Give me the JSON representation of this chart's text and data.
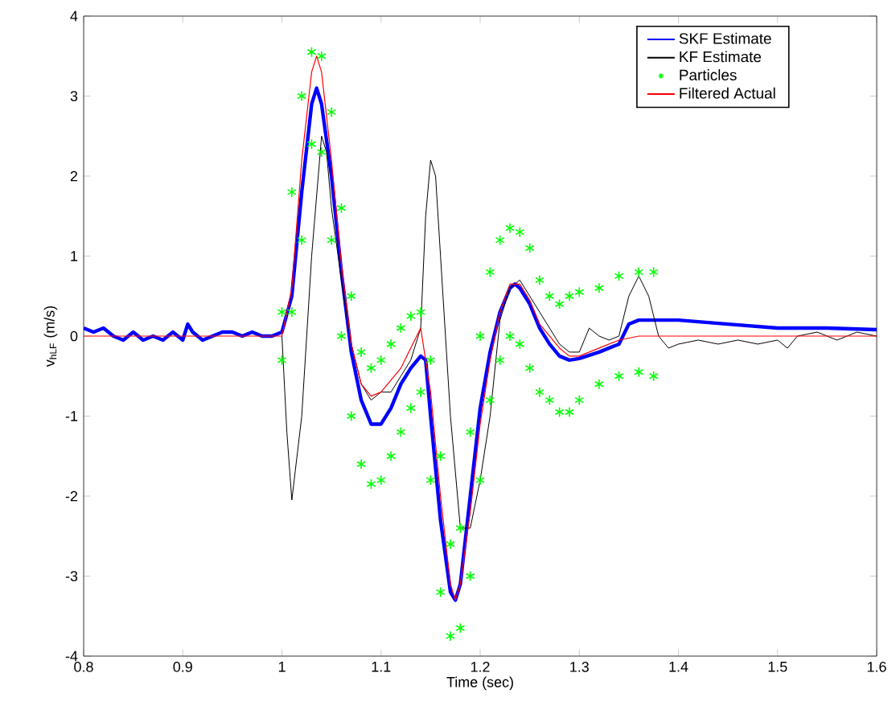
{
  "chart_data": {
    "type": "line",
    "xlabel": "Time (sec)",
    "ylabel": "v$_{hLF}$ (m/s)",
    "xlim": [
      0.8,
      1.6
    ],
    "xticks": [
      0.8,
      0.9,
      1,
      1.1,
      1.2,
      1.3,
      1.4,
      1.5,
      1.6
    ],
    "ylim": [
      -4,
      4
    ],
    "yticks": [
      -4,
      -3,
      -2,
      -1,
      0,
      1,
      2,
      3,
      4
    ],
    "legend": "top right",
    "grid": false,
    "line_style": "solid",
    "series": [
      {
        "name": "SKF Estimate",
        "color": "#0000ff",
        "x": [
          0.8,
          0.81,
          0.82,
          0.83,
          0.84,
          0.85,
          0.86,
          0.87,
          0.88,
          0.89,
          0.9,
          0.905,
          0.91,
          0.92,
          0.93,
          0.94,
          0.95,
          0.96,
          0.97,
          0.98,
          0.99,
          1.0,
          1.01,
          1.02,
          1.03,
          1.035,
          1.04,
          1.05,
          1.06,
          1.07,
          1.08,
          1.09,
          1.1,
          1.11,
          1.12,
          1.13,
          1.14,
          1.145,
          1.15,
          1.16,
          1.17,
          1.175,
          1.18,
          1.19,
          1.2,
          1.21,
          1.22,
          1.23,
          1.235,
          1.24,
          1.25,
          1.26,
          1.27,
          1.28,
          1.29,
          1.3,
          1.32,
          1.34,
          1.35,
          1.36,
          1.38,
          1.4,
          1.45,
          1.5,
          1.55,
          1.6
        ],
        "values": [
          0.1,
          0.05,
          0.1,
          0.0,
          -0.05,
          0.05,
          -0.05,
          0.0,
          -0.05,
          0.05,
          -0.05,
          0.15,
          0.05,
          -0.05,
          0.0,
          0.05,
          0.05,
          0.0,
          0.05,
          0.0,
          0.0,
          0.05,
          0.5,
          1.8,
          2.9,
          3.1,
          2.9,
          2.0,
          0.8,
          -0.2,
          -0.8,
          -1.1,
          -1.1,
          -0.9,
          -0.6,
          -0.4,
          -0.25,
          -0.3,
          -1.0,
          -2.3,
          -3.2,
          -3.3,
          -3.1,
          -2.0,
          -0.9,
          -0.2,
          0.3,
          0.6,
          0.65,
          0.6,
          0.4,
          0.1,
          -0.1,
          -0.25,
          -0.3,
          -0.28,
          -0.2,
          -0.1,
          0.15,
          0.2,
          0.2,
          0.2,
          0.15,
          0.1,
          0.1,
          0.08
        ]
      },
      {
        "name": "KF Estimate",
        "color": "#000000",
        "x": [
          1.0,
          1.005,
          1.01,
          1.02,
          1.03,
          1.04,
          1.045,
          1.05,
          1.06,
          1.07,
          1.08,
          1.09,
          1.1,
          1.11,
          1.12,
          1.13,
          1.14,
          1.145,
          1.15,
          1.155,
          1.16,
          1.17,
          1.18,
          1.19,
          1.2,
          1.21,
          1.22,
          1.23,
          1.24,
          1.25,
          1.26,
          1.27,
          1.28,
          1.29,
          1.3,
          1.31,
          1.32,
          1.33,
          1.34,
          1.35,
          1.36,
          1.37,
          1.38,
          1.39,
          1.4,
          1.42,
          1.44,
          1.46,
          1.48,
          1.5,
          1.51,
          1.52,
          1.54,
          1.56,
          1.58,
          1.6
        ],
        "values": [
          0.0,
          -1.2,
          -2.05,
          -1.0,
          1.0,
          2.5,
          2.3,
          1.6,
          0.7,
          -0.1,
          -0.6,
          -0.8,
          -0.7,
          -0.7,
          -0.5,
          -0.3,
          0.1,
          1.5,
          2.2,
          2.0,
          1.0,
          -1.0,
          -2.4,
          -2.4,
          -1.8,
          -1.0,
          0.2,
          0.6,
          0.7,
          0.5,
          0.3,
          0.1,
          -0.1,
          -0.2,
          -0.2,
          0.1,
          0.0,
          -0.05,
          0.0,
          0.5,
          0.75,
          0.5,
          0.0,
          -0.15,
          -0.1,
          -0.05,
          -0.1,
          -0.05,
          -0.1,
          -0.05,
          -0.15,
          0.0,
          0.05,
          -0.05,
          0.05,
          0.0
        ]
      },
      {
        "name": "Particles",
        "color": "#00ff00",
        "type": "scatter",
        "marker": "cross",
        "x": [
          1.0,
          1.01,
          1.02,
          1.03,
          1.04,
          1.05,
          1.06,
          1.07,
          1.08,
          1.09,
          1.1,
          1.11,
          1.12,
          1.13,
          1.14,
          1.15,
          1.16,
          1.17,
          1.18,
          1.19,
          1.2,
          1.21,
          1.22,
          1.23,
          1.24,
          1.25,
          1.26,
          1.27,
          1.28,
          1.29,
          1.3,
          1.32,
          1.34,
          1.36,
          1.375,
          1.0,
          1.01,
          1.02,
          1.03,
          1.04,
          1.05,
          1.06,
          1.07,
          1.08,
          1.09,
          1.1,
          1.11,
          1.12,
          1.13,
          1.14,
          1.15,
          1.16,
          1.17,
          1.18,
          1.19,
          1.2,
          1.21,
          1.22,
          1.23,
          1.24,
          1.25,
          1.26,
          1.27,
          1.28,
          1.29,
          1.3,
          1.32,
          1.34,
          1.36,
          1.375
        ],
        "values": [
          0.3,
          1.8,
          3.0,
          3.55,
          3.5,
          2.8,
          1.6,
          0.5,
          -0.2,
          -0.4,
          -0.3,
          -0.1,
          0.1,
          0.25,
          0.3,
          -0.3,
          -1.5,
          -2.6,
          -2.4,
          -1.2,
          0.0,
          0.8,
          1.2,
          1.35,
          1.3,
          1.1,
          0.7,
          0.5,
          0.4,
          0.5,
          0.55,
          0.6,
          0.75,
          0.8,
          0.8,
          -0.3,
          0.3,
          1.2,
          2.4,
          2.3,
          1.2,
          0.0,
          -1.0,
          -1.6,
          -1.85,
          -1.8,
          -1.5,
          -1.2,
          -0.9,
          -0.7,
          -1.8,
          -3.2,
          -3.75,
          -3.65,
          -3.0,
          -1.8,
          -0.8,
          -0.3,
          0.0,
          -0.1,
          -0.4,
          -0.7,
          -0.8,
          -0.95,
          -0.95,
          -0.8,
          -0.6,
          -0.5,
          -0.45,
          -0.5
        ]
      },
      {
        "name": "Filtered Actual",
        "color": "#ff0000",
        "x": [
          0.8,
          1.0,
          1.01,
          1.02,
          1.03,
          1.035,
          1.04,
          1.05,
          1.06,
          1.07,
          1.08,
          1.09,
          1.1,
          1.12,
          1.14,
          1.15,
          1.16,
          1.17,
          1.175,
          1.18,
          1.19,
          1.2,
          1.21,
          1.22,
          1.23,
          1.24,
          1.25,
          1.26,
          1.28,
          1.29,
          1.3,
          1.32,
          1.34,
          1.36,
          1.6
        ],
        "values": [
          0.0,
          0.0,
          0.6,
          2.2,
          3.3,
          3.5,
          3.3,
          2.2,
          0.9,
          -0.1,
          -0.6,
          -0.75,
          -0.7,
          -0.4,
          0.1,
          -0.7,
          -2.0,
          -3.1,
          -3.3,
          -3.1,
          -2.2,
          -1.1,
          -0.3,
          0.3,
          0.65,
          0.65,
          0.45,
          0.15,
          -0.15,
          -0.25,
          -0.25,
          -0.15,
          -0.05,
          0.0,
          0.0
        ]
      }
    ]
  }
}
